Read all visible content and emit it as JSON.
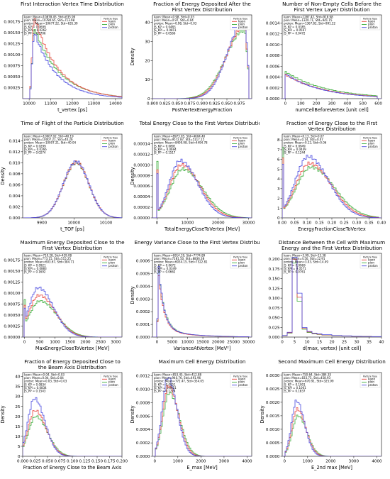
{
  "figure": {
    "legend_title": "Particle Type",
    "legend_labels": [
      "kaon",
      "pion",
      "proton"
    ],
    "colors": {
      "kaon": "#e8433b",
      "pion": "#3cae3c",
      "proton": "#4a4ae0"
    }
  },
  "chart_data": [
    {
      "type": "histogram",
      "title": [
        "First Interaction Vertex Time Distribution"
      ],
      "xlabel": "t_vertex [ps]",
      "ylabel": "",
      "stats": [
        "kaon: Mean=10878.45, Std=635.99",
        "pion: Mean=10780.65, Std=713.98",
        "proton: Mean=10677.22, Std=635.39",
        "JS_KP = 0.0699",
        "JS_KPi = 0.0262",
        "JS_PP = 0.0706"
      ],
      "xlim": [
        9700,
        14300
      ],
      "ylim": [
        0,
        0.0019
      ],
      "xticks": [
        10000,
        11000,
        12000,
        13000,
        14000
      ],
      "xticklabels": [
        "10000",
        "11000",
        "12000",
        "13000",
        "14000"
      ],
      "yticks": [
        0.00025,
        0.0005,
        0.00075,
        0.001,
        0.00125,
        0.0015,
        0.00175
      ],
      "yticklabels": [
        "0.00025",
        "0.00050",
        "0.00075",
        "0.00100",
        "0.00125",
        "0.00150",
        "0.00175"
      ],
      "yoffset": "",
      "shape": "rise_tail",
      "param": {
        "peak": 10250,
        "width_up": 300,
        "tail": 1100,
        "start": 10000
      },
      "peaks": {
        "kaon": 0.00185,
        "pion": 0.0016,
        "proton": 0.0015
      },
      "legend": true
    },
    {
      "type": "histogram",
      "title": [
        "Fraction of Energy Deposited After the",
        "First Vertex Distribution"
      ],
      "xlabel": "PostVertexEnergyFraction",
      "ylabel": "Density",
      "stats": [
        "kaon: Mean=0.98, Std=0.03",
        "pion: Mean=0.97, Std=0.04",
        "proton: Mean=0.98, Std=0.03",
        "JS_KP = 0.0483",
        "JS_KPi = 0.0811",
        "JS_PP = 0.0566"
      ],
      "xlim": [
        0.8,
        1.0
      ],
      "ylim": [
        0,
        44
      ],
      "xticks": [
        0.8,
        0.825,
        0.85,
        0.875,
        0.9,
        0.925,
        0.95,
        0.975
      ],
      "xticklabels": [
        "0.800",
        "0.825",
        "0.850",
        "0.875",
        "0.900",
        "0.925",
        "0.950",
        "0.975"
      ],
      "yticks": [
        0,
        10,
        20,
        30,
        40
      ],
      "yticklabels": [
        "0",
        "10",
        "20",
        "30",
        "40"
      ],
      "yoffset": "",
      "shape": "skew_left",
      "param": {
        "peak": 0.985,
        "left": 0.035,
        "right": 0.006,
        "end": 0.995
      },
      "peaks": {
        "kaon": 38,
        "pion": 36,
        "proton": 41
      },
      "legend": true
    },
    {
      "type": "histogram",
      "title": [
        "Number of Non-Empty Cells Before the",
        "First Vertex Layer Distribution"
      ],
      "xlabel": "numCellBeforeVertex [unit cell]",
      "ylabel": "",
      "stats": [
        "kaon: Mean=1287.42, Std=918.98",
        "pion: Mean=1320.71, Std=941.15",
        "proton: Mean=1367.82, Std=991.22",
        "JS_KP = 0.0385",
        "JS_KPi = 0.0567",
        "JS_PP = 0.0472"
      ],
      "xlim": [
        -20,
        620
      ],
      "ylim": [
        0,
        0.00155
      ],
      "xticks": [
        0,
        100,
        200,
        300,
        400,
        500,
        600
      ],
      "xticklabels": [
        "0",
        "100",
        "200",
        "300",
        "400",
        "500",
        "600"
      ],
      "yticks": [
        0,
        0.0002,
        0.0004,
        0.0006,
        0.0008,
        0.001,
        0.0012,
        0.0014
      ],
      "yticklabels": [
        "0.0000",
        "0.0002",
        "0.0004",
        "0.0006",
        "0.0008",
        "0.0010",
        "0.0012",
        "0.0014"
      ],
      "yoffset": "",
      "shape": "decay",
      "param": {
        "start": 0,
        "scale": 250,
        "end": 590
      },
      "peaks": {
        "kaon": 0.00045,
        "pion": 0.0005,
        "proton": 0.00046
      },
      "legend": true
    },
    {
      "type": "histogram",
      "title": [
        "Time of Flight of the Particle Distribution"
      ],
      "xlabel": "t_TOF [ps]",
      "ylabel": "Density",
      "stats": [
        "kaon: Mean=10007.02, Std=40.19",
        "pion: Mean=10007.21, Std=40.26",
        "proton: Mean=10007.21, Std=40.04",
        "JS_KP = 0.0299",
        "JS_KPi = 0.0266",
        "JS_PP = 0.0274"
      ],
      "xlim": [
        9840,
        10150
      ],
      "ylim": [
        0,
        0.0152
      ],
      "xticks": [
        9900,
        10000,
        10100
      ],
      "xticklabels": [
        "9900",
        "10000",
        "10100"
      ],
      "yticks": [
        0,
        0.002,
        0.004,
        0.006,
        0.008,
        0.01,
        0.012,
        0.014
      ],
      "yticklabels": [
        "0.000",
        "0.002",
        "0.004",
        "0.006",
        "0.008",
        "0.010",
        "0.012",
        "0.014"
      ],
      "yoffset": "",
      "shape": "gauss",
      "param": {
        "mean": 10007,
        "std": 40
      },
      "peaks": {
        "kaon": 0.0101,
        "pion": 0.01,
        "proton": 0.0102
      },
      "legend": true
    },
    {
      "type": "histogram",
      "title": [
        "Total Energy Close to the First Vertex Distribution"
      ],
      "xlabel": "TotalEnergyCloseToVertex [MeV]",
      "ylabel": "Density",
      "stats": [
        "kaon: Mean=8973.05, Std=4604.40",
        "pion: Mean=9572.87, Std=5117.15",
        "proton: Mean=8409.98, Std=4494.78",
        "JS_KP = 0.0891",
        "JS_KPi = 0.0694",
        "JS_PP = 0.1517"
      ],
      "xlim": [
        -1500,
        31000
      ],
      "ylim": [
        0,
        0.000158
      ],
      "xticks": [
        0,
        10000,
        20000,
        30000
      ],
      "xticklabels": [
        "0",
        "10000",
        "20000",
        "30000"
      ],
      "yticks": [
        0,
        2e-05,
        4e-05,
        6e-05,
        8e-05,
        0.0001,
        0.00012,
        0.00014
      ],
      "yticklabels": [
        "0.00000",
        "0.00002",
        "0.00004",
        "0.00006",
        "0.00008",
        "0.00010",
        "0.00012",
        "0.00014"
      ],
      "yoffset": "",
      "shape": "gamma",
      "param": {
        "peak": 8000,
        "width": 3800,
        "spike": 0.00011,
        "end": 30000
      },
      "peaks": {
        "kaon": 0.0001,
        "pion": 9.2e-05,
        "proton": 0.000108
      },
      "legend": true
    },
    {
      "type": "histogram",
      "title": [
        "Fraction of Energy Close to the First",
        "Vertex Distribution"
      ],
      "xlabel": "EnergyFractionCloseToVertex",
      "ylabel": "",
      "stats": [
        "kaon: Mean=0.13, Std=0.07",
        "pion: Mean=0.14, Std=0.07",
        "proton: Mean=0.12, Std=0.06",
        "JS_KP = 0.0949",
        "JS_KPi = 0.0449",
        "JS_PP = 0.1244"
      ],
      "xlim": [
        0,
        0.4
      ],
      "ylim": [
        0,
        8.6
      ],
      "xticks": [
        0.0,
        0.05,
        0.1,
        0.15,
        0.2,
        0.25,
        0.3,
        0.35,
        0.4
      ],
      "xticklabels": [
        "0.00",
        "0.05",
        "0.10",
        "0.15",
        "0.20",
        "0.25",
        "0.30",
        "0.35",
        "0.40"
      ],
      "yticks": [
        0,
        1,
        2,
        3,
        4,
        5,
        6,
        7,
        8
      ],
      "yticklabels": [
        "0",
        "1",
        "2",
        "3",
        "4",
        "5",
        "6",
        "7",
        "8"
      ],
      "yoffset": "",
      "shape": "gamma",
      "param": {
        "peak": 0.11,
        "width": 0.055,
        "spike": 7.4,
        "end": 0.39
      },
      "peaks": {
        "kaon": 5.6,
        "pion": 5.2,
        "proton": 6.3
      },
      "legend": true
    },
    {
      "type": "histogram",
      "title": [
        "Maximum Energy Deposited Close to the",
        "First Vertex Distribution"
      ],
      "xlabel": "MaxEnergyCloseToVertex [MeV]",
      "ylabel": "",
      "stats": [
        "kaon: Mean=710.28, Std=439.08",
        "pion: Mean=773.15, Std=515.25",
        "proton: Mean=603.67, Std=384.71",
        "JS_KP = 0.0921",
        "JS_KPi = 0.0883",
        "JS_PP = 0.1692"
      ],
      "xlim": [
        -60,
        3200
      ],
      "ylim": [
        0,
        0.0019
      ],
      "xticks": [
        0,
        500,
        1000,
        1500,
        2000,
        2500,
        3000
      ],
      "xticklabels": [
        "0",
        "500",
        "1000",
        "1500",
        "2000",
        "2500",
        "3000"
      ],
      "yticks": [
        0,
        0.00025,
        0.0005,
        0.00075,
        0.001,
        0.00125,
        0.0015,
        0.00175
      ],
      "yticklabels": [
        "0.00000",
        "0.00025",
        "0.00050",
        "0.00075",
        "0.00100",
        "0.00125",
        "0.00150",
        "0.00175"
      ],
      "yoffset": "",
      "shape": "gamma",
      "param": {
        "peak": 480,
        "width": 330,
        "spike": 0.00085,
        "end": 3100
      },
      "peaks": {
        "kaon": 0.00095,
        "pion": 0.00082,
        "proton": 0.00112
      },
      "legend": true
    },
    {
      "type": "histogram",
      "title": [
        "Energy Variance Close to the First Vertex Distribution"
      ],
      "xlabel": "VarianceAtVertex [MeV²]",
      "ylabel": "Density",
      "stats": [
        "kaon: Mean=6914.19, Std=7774.89",
        "pion: Mean=7281.50, Std=8836.38",
        "proton: Mean=6034.15, Std=7522.81",
        "JS_KP = 0.0672",
        "JS_KPi = 0.0349",
        "JS_PP = 0.0662"
      ],
      "xlim": [
        -1500,
        31000
      ],
      "ylim": [
        0,
        0.00066
      ],
      "xticks": [
        0,
        5000,
        10000,
        15000,
        20000,
        25000,
        30000
      ],
      "xticklabels": [
        "0",
        "5000",
        "10000",
        "15000",
        "20000",
        "25000",
        "30000"
      ],
      "yticks": [
        0,
        0.0001,
        0.0002,
        0.0003,
        0.0004,
        0.0005,
        0.0006
      ],
      "yticklabels": [
        "0.0000",
        "0.0001",
        "0.0002",
        "0.0003",
        "0.0004",
        "0.0005",
        "0.0006"
      ],
      "yoffset": "",
      "shape": "sharp_decay",
      "param": {
        "start": 500,
        "scale": 1800,
        "tail_scale": 9000,
        "tail_frac": 0.12,
        "end": 30000
      },
      "peaks": {
        "kaon": 0.0005,
        "pion": 0.00053,
        "proton": 0.00058
      },
      "legend": true
    },
    {
      "type": "histogram",
      "title": [
        "Distance Between the Cell with Maximum",
        "Energy and the First Vertex Distribution"
      ],
      "xlabel": "d(max, vertex) [unit cell]",
      "ylabel": "",
      "stats": [
        "kaon: Mean=3.99, Std=13.38",
        "pion: Mean=4.50, Std=12.91",
        "proton: Mean=3.03, Std=14.49",
        "JS_KP = 0.0969",
        "JS_KPi = 0.0571",
        "JS_PP = 0.0761"
      ],
      "xlim": [
        0,
        40
      ],
      "ylim": [
        0,
        0.215
      ],
      "xticks": [
        0,
        5,
        10,
        15,
        20,
        25,
        30,
        35,
        40
      ],
      "xticklabels": [
        "0",
        "5",
        "10",
        "15",
        "20",
        "25",
        "30",
        "35",
        "40"
      ],
      "yticks": [
        0,
        0.025,
        0.05,
        0.075,
        0.1,
        0.125,
        0.15,
        0.175,
        0.2
      ],
      "yticklabels": [
        "0.000",
        "0.025",
        "0.050",
        "0.075",
        "0.100",
        "0.125",
        "0.150",
        "0.175",
        "0.200"
      ],
      "yoffset": "",
      "shape": "discrete",
      "param": {
        "bins": [
          0,
          2,
          4,
          6,
          8,
          10,
          12,
          14,
          16,
          20,
          24,
          28,
          32,
          36,
          40
        ]
      },
      "peaks": {
        "kaon": 0.2,
        "pion": 0.19,
        "proton": 0.205
      },
      "legend": true
    },
    {
      "type": "histogram",
      "title": [
        "Fraction of Energy Deposited Close to",
        "the Beam Axis Distribution"
      ],
      "xlabel": "Fraction of Energy Close to the Beam Axis",
      "ylabel": "Density",
      "stats": [
        "kaon: Mean=0.04, Std=0.03",
        "pion: Mean=0.04, Std=0.04",
        "proton: Mean=0.03, Std=0.03",
        "JS_KP = 0.0834",
        "JS_KPi = 0.0834",
        "JS_PP = 0.1543"
      ],
      "xlim": [
        0,
        0.2
      ],
      "ylim": [
        0,
        42
      ],
      "xticks": [
        0.0,
        0.025,
        0.05,
        0.075,
        0.1,
        0.125,
        0.15,
        0.175,
        0.2
      ],
      "xticklabels": [
        "0.000",
        "0.025",
        "0.050",
        "0.075",
        "0.100",
        "0.125",
        "0.150",
        "0.175",
        "0.200"
      ],
      "yticks": [
        0,
        5,
        10,
        15,
        20,
        25,
        30,
        35,
        40
      ],
      "yticklabels": [
        "0",
        "5",
        "10",
        "15",
        "20",
        "25",
        "30",
        "35",
        "40"
      ],
      "yoffset": "",
      "shape": "gamma",
      "param": {
        "peak": 0.025,
        "width": 0.014,
        "spike": 0,
        "end": 0.19
      },
      "peaks": {
        "kaon": 23,
        "pion": 20,
        "proton": 29
      },
      "legend": true
    },
    {
      "type": "histogram",
      "title": [
        "Maximum Cell Energy Distribution"
      ],
      "xlabel": "E_max [MeV]",
      "ylabel": "Density",
      "stats": [
        "kaon: Mean=853.45, Std=412.88",
        "pion: Mean=940.76, Std=491.96",
        "proton: Mean=772.47, Std=354.05",
        "JS_KP = 0.0951",
        "JS_KPi = 0.0951",
        "JS_PP = 0.1774"
      ],
      "xlim": [
        -100,
        4200
      ],
      "ylim": [
        0,
        0.00125
      ],
      "xticks": [
        0,
        1000,
        2000,
        3000,
        4000
      ],
      "xticklabels": [
        "0",
        "1000",
        "2000",
        "3000",
        "4000"
      ],
      "yticks": [
        0,
        0.0002,
        0.0004,
        0.0006,
        0.0008,
        0.001,
        0.0012
      ],
      "yticklabels": [
        "0.0000",
        "0.0002",
        "0.0004",
        "0.0006",
        "0.0008",
        "0.0010",
        "0.0012"
      ],
      "yoffset": "",
      "shape": "gamma",
      "param": {
        "peak": 600,
        "width": 260,
        "spike": 0,
        "end": 4000
      },
      "peaks": {
        "kaon": 0.00105,
        "pion": 0.00095,
        "proton": 0.00118
      },
      "legend": true
    },
    {
      "type": "histogram",
      "title": [
        "Second Maximum Cell Energy Distribution"
      ],
      "xlabel": "E_2nd max [MeV]",
      "ylabel": "Density",
      "stats": [
        "kaon: Mean=750.64, Std=384.35",
        "pion: Mean=833.75, Std=458.93",
        "proton: Mean=670.91, Std=325.99",
        "JS_KP = 0.1001",
        "JS_KPi = 0.1001",
        "JS_PP = 0.1837"
      ],
      "xlim": [
        -100,
        4200
      ],
      "ylim": [
        0,
        0.0031
      ],
      "xticks": [
        0,
        1000,
        2000,
        3000,
        4000
      ],
      "xticklabels": [
        "0",
        "1000",
        "2000",
        "3000",
        "4000"
      ],
      "yticks": [
        0,
        0.0005,
        0.001,
        0.0015,
        0.002,
        0.0025,
        0.003
      ],
      "yticklabels": [
        "0.0000",
        "0.0005",
        "0.0010",
        "0.0015",
        "0.0020",
        "0.0025",
        "0.0030"
      ],
      "yoffset": "",
      "shape": "gamma",
      "param": {
        "peak": 550,
        "width": 230,
        "spike": 0,
        "end": 4000
      },
      "peaks": {
        "kaon": 0.00175,
        "pion": 0.0015,
        "proton": 0.00205
      },
      "legend": true
    }
  ]
}
